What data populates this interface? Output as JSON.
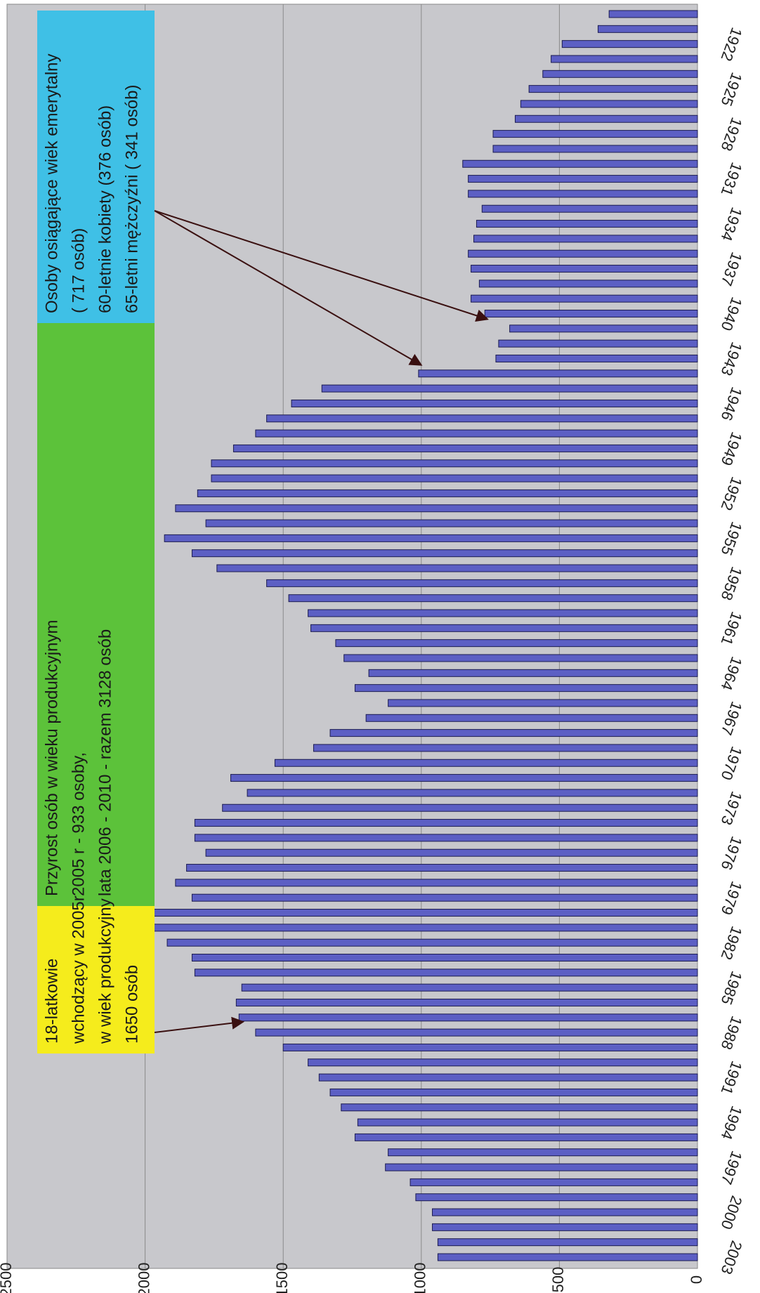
{
  "chart_data": {
    "type": "bar",
    "orientation": "horizontal",
    "categories": [
      null,
      null,
      "1922",
      null,
      null,
      "1925",
      null,
      null,
      "1928",
      null,
      null,
      "1931",
      null,
      null,
      "1934",
      null,
      null,
      "1937",
      null,
      null,
      "1940",
      null,
      null,
      "1943",
      null,
      null,
      "1946",
      null,
      null,
      "1949",
      null,
      null,
      "1952",
      null,
      null,
      "1955",
      null,
      null,
      "1958",
      null,
      null,
      "1961",
      null,
      null,
      "1964",
      null,
      null,
      "1967",
      null,
      null,
      "1970",
      null,
      null,
      "1973",
      null,
      null,
      "1976",
      null,
      null,
      "1979",
      null,
      null,
      "1982",
      null,
      null,
      "1985",
      null,
      null,
      "1988",
      null,
      null,
      "1991",
      null,
      null,
      "1994",
      null,
      null,
      "1997",
      null,
      null,
      "2000",
      null,
      null,
      "2003"
    ],
    "values": [
      320,
      360,
      490,
      530,
      560,
      610,
      640,
      660,
      740,
      740,
      850,
      830,
      830,
      780,
      800,
      810,
      830,
      820,
      790,
      820,
      770,
      680,
      720,
      730,
      1010,
      1360,
      1470,
      1560,
      1600,
      1680,
      1760,
      1760,
      1810,
      1890,
      1780,
      1930,
      1830,
      1740,
      1560,
      1480,
      1410,
      1400,
      1310,
      1280,
      1190,
      1240,
      1120,
      1200,
      1330,
      1390,
      1530,
      1690,
      1630,
      1720,
      1820,
      1820,
      1780,
      1850,
      1890,
      1830,
      2000,
      1990,
      1920,
      1830,
      1820,
      1650,
      1670,
      1660,
      1600,
      1500,
      1410,
      1370,
      1330,
      1290,
      1230,
      1240,
      1120,
      1130,
      1040,
      1020,
      960,
      960,
      940,
      940
    ],
    "color": "#5c5fc4",
    "xlim": [
      0,
      2500
    ],
    "xticks": [
      0,
      500,
      1000,
      1500,
      2000,
      2500
    ],
    "grid": true,
    "annotations": [
      {
        "color": "#3fc0e6",
        "lines": [
          "Osoby osiągające wiek emerytalny",
          "( 717 osób)",
          "60-letnie kobiety (376 osób)",
          "65-letni mężczyźni ( 341 osób)"
        ]
      },
      {
        "color": "#5cc23a",
        "lines": [
          "Przyrost osób w wieku produkcyjnym",
          "2005 r - 933 osoby,",
          "lata  2006 - 2010 - razem 3128 osób"
        ]
      },
      {
        "color": "#f5ec1c",
        "lines": [
          "18-latkowie",
          "wchodzący w 2005r",
          "w wiek produkcyjny",
          "1650 osób"
        ]
      }
    ]
  }
}
